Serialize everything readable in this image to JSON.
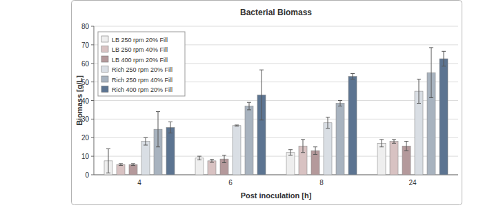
{
  "chart_data": {
    "type": "bar",
    "title": "Bacterial Biomass",
    "x_label": "Post inoculation [h]",
    "y_label": "Biomass [g/L]",
    "categories": [
      "4",
      "6",
      "8",
      "24"
    ],
    "series": [
      {
        "name": "LB 250 rpm 20% Fill",
        "color": "#eeeeee",
        "values": [
          7.5,
          9,
          12,
          17
        ],
        "errors": [
          6.5,
          1,
          1.5,
          2
        ]
      },
      {
        "name": "LB 250 rpm 40% Fill",
        "color": "#d8c2c2",
        "values": [
          5.5,
          7.5,
          15.5,
          18
        ],
        "errors": [
          0.5,
          0.8,
          3.5,
          1
        ]
      },
      {
        "name": "LB 400 rpm 20% Fill",
        "color": "#b4999b",
        "values": [
          5.5,
          8.5,
          13,
          15.5
        ],
        "errors": [
          0.5,
          2,
          2,
          2.5
        ]
      },
      {
        "name": "Rich 250 rpm 20% Fill",
        "color": "#d9dee4",
        "values": [
          18,
          26.5,
          28,
          45
        ],
        "errors": [
          2,
          0.3,
          3,
          6.5
        ]
      },
      {
        "name": "Rich 250 rpm 40% Fill",
        "color": "#a8b3bf",
        "values": [
          24.5,
          37,
          38.5,
          55
        ],
        "errors": [
          9.5,
          2,
          1.5,
          13.5
        ]
      },
      {
        "name": "Rich 400 rpm 20% Fill",
        "color": "#5c7491",
        "values": [
          25.5,
          43,
          53,
          62.5
        ],
        "errors": [
          3,
          13.5,
          1.5,
          4
        ]
      }
    ],
    "ylim": [
      0,
      80
    ],
    "yticks": [
      0,
      10,
      20,
      30,
      40,
      50,
      60,
      70,
      80
    ],
    "grid": true,
    "legend": "top-left"
  }
}
